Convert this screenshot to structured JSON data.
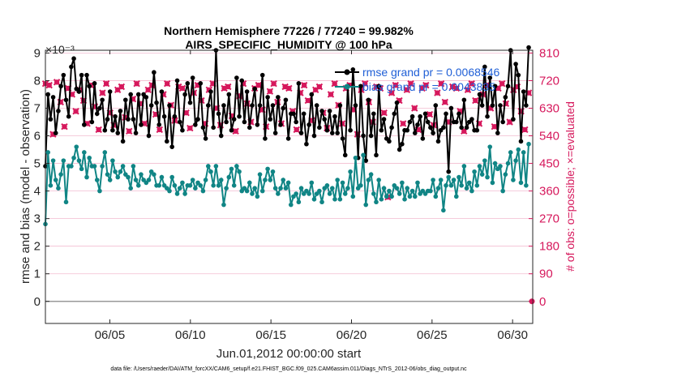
{
  "chart_data": {
    "type": "line",
    "title_line1": "Northern Hemisphere 77226 / 77240 = 99.982%",
    "title_line2": "AIRS_SPECIFIC_HUMIDITY @ 100 hPa",
    "xlabel": "Jun.01,2012 00:00:00 start",
    "ylabel_left": "rmse and bias (model - observation)",
    "ylabel_right": "# of obs: o=possible; ×=evaluated",
    "exponent_label": "×10⁻³",
    "footer": "data file: /Users/raeder/DAI/ATM_forcXX/CAM6_setup/f.e21.FHIST_BGC.f09_025.CAM6assim.011/Diags_NTrS_2012-06/obs_diag_output.nc",
    "x_range": [
      1,
      31.25
    ],
    "y_left_range": [
      -0.0008,
      0.0091
    ],
    "y_right_range": [
      -72,
      819
    ],
    "x_ticks": [
      {
        "value": 5,
        "label": "06/05"
      },
      {
        "value": 10,
        "label": "06/10"
      },
      {
        "value": 15,
        "label": "06/15"
      },
      {
        "value": 20,
        "label": "06/20"
      },
      {
        "value": 25,
        "label": "06/25"
      },
      {
        "value": 30,
        "label": "06/30"
      }
    ],
    "y_left_ticks": [
      {
        "value": 0,
        "label": "0"
      },
      {
        "value": 0.001,
        "label": "1"
      },
      {
        "value": 0.002,
        "label": "2"
      },
      {
        "value": 0.003,
        "label": "3"
      },
      {
        "value": 0.004,
        "label": "4"
      },
      {
        "value": 0.005,
        "label": "5"
      },
      {
        "value": 0.006,
        "label": "6"
      },
      {
        "value": 0.007,
        "label": "7"
      },
      {
        "value": 0.008,
        "label": "8"
      },
      {
        "value": 0.009,
        "label": "9"
      }
    ],
    "y_right_ticks": [
      {
        "value": 0,
        "label": "0"
      },
      {
        "value": 90,
        "label": "90"
      },
      {
        "value": 180,
        "label": "180"
      },
      {
        "value": 270,
        "label": "270"
      },
      {
        "value": 360,
        "label": "360"
      },
      {
        "value": 450,
        "label": "450"
      },
      {
        "value": 540,
        "label": "540"
      },
      {
        "value": 630,
        "label": "630"
      },
      {
        "value": 720,
        "label": "720"
      },
      {
        "value": 810,
        "label": "810"
      }
    ],
    "series": [
      {
        "name": "rmse grand pr = 0.0068546",
        "axis": "left",
        "color": "#000000",
        "values": [
          0.0049,
          0.0075,
          0.0066,
          0.0074,
          0.0061,
          0.0069,
          0.0078,
          0.0082,
          0.0073,
          0.0067,
          0.0085,
          0.0088,
          0.0077,
          0.0076,
          0.0082,
          0.0064,
          0.0082,
          0.0078,
          0.0065,
          0.0079,
          0.0068,
          0.007,
          0.0073,
          0.0062,
          0.0066,
          0.0076,
          0.0062,
          0.0067,
          0.0061,
          0.0069,
          0.0058,
          0.0073,
          0.0066,
          0.0075,
          0.0066,
          0.0061,
          0.0075,
          0.0064,
          0.0075,
          0.0074,
          0.006,
          0.0071,
          0.0083,
          0.0072,
          0.0064,
          0.0076,
          0.0067,
          0.0058,
          0.0071,
          0.0056,
          0.0067,
          0.008,
          0.0065,
          0.0062,
          0.0075,
          0.0079,
          0.0072,
          0.0081,
          0.0064,
          0.0066,
          0.0079,
          0.0063,
          0.0059,
          0.0071,
          0.0076,
          0.0063,
          0.0091,
          0.0068,
          0.006,
          0.0071,
          0.0065,
          0.0075,
          0.0062,
          0.0066,
          0.0081,
          0.0067,
          0.008,
          0.0065,
          0.0076,
          0.0063,
          0.0071,
          0.0077,
          0.0064,
          0.0071,
          0.0082,
          0.0059,
          0.0074,
          0.0066,
          0.0071,
          0.0061,
          0.0074,
          0.0064,
          0.007,
          0.0073,
          0.0059,
          0.0068,
          0.0068,
          0.0065,
          0.0079,
          0.0061,
          0.0068,
          0.0057,
          0.0064,
          0.0075,
          0.006,
          0.0071,
          0.0063,
          0.0069,
          0.0066,
          0.0062,
          0.0069,
          0.0061,
          0.0067,
          0.0061,
          0.0071,
          0.0059,
          0.0053,
          0.0078,
          0.0062,
          0.0084,
          0.0071,
          0.0052,
          0.0078,
          0.006,
          0.0051,
          0.0073,
          0.006,
          0.0068,
          0.0053,
          0.0078,
          0.0062,
          0.0066,
          0.0059,
          0.0058,
          0.0063,
          0.0068,
          0.0072,
          0.0055,
          0.0057,
          0.0062,
          0.0062,
          0.0065,
          0.0067,
          0.0061,
          0.0064,
          0.0067,
          0.0059,
          0.0068,
          0.0065,
          0.0063,
          0.0061,
          0.0071,
          0.0058,
          0.0062,
          0.0063,
          0.0068,
          0.0047,
          0.007,
          0.0065,
          0.0065,
          0.0068,
          0.0063,
          0.0073,
          0.0063,
          0.0065,
          0.0066,
          0.0062,
          0.0062,
          0.0075,
          0.0071,
          0.0085,
          0.0067,
          0.0081,
          0.0071,
          0.0078,
          0.0061,
          0.0071,
          0.0065,
          0.0074,
          0.0078,
          0.0091,
          0.0066,
          0.0086,
          0.0082,
          0.0058,
          0.0076,
          0.0071,
          0.0092
        ]
      },
      {
        "name": "bias grand pr = 0.0043835",
        "axis": "left",
        "color": "#108585",
        "values": [
          0.0028,
          0.0054,
          0.0042,
          0.0051,
          0.0044,
          0.0041,
          0.0046,
          0.0051,
          0.0036,
          0.0049,
          0.0049,
          0.0052,
          0.0056,
          0.0051,
          0.0048,
          0.0054,
          0.0045,
          0.0052,
          0.0049,
          0.0049,
          0.0044,
          0.004,
          0.0049,
          0.0054,
          0.0046,
          0.0044,
          0.0051,
          0.0047,
          0.0045,
          0.0047,
          0.0049,
          0.0046,
          0.0045,
          0.0041,
          0.0049,
          0.0044,
          0.0042,
          0.0046,
          0.0044,
          0.0043,
          0.0044,
          0.0047,
          0.0046,
          0.0042,
          0.0042,
          0.0045,
          0.0042,
          0.0041,
          0.004,
          0.0045,
          0.0042,
          0.0039,
          0.0041,
          0.0043,
          0.0039,
          0.0042,
          0.0042,
          0.0044,
          0.0041,
          0.0043,
          0.0042,
          0.004,
          0.0044,
          0.0049,
          0.0047,
          0.0042,
          0.0049,
          0.0042,
          0.0044,
          0.0035,
          0.0041,
          0.0045,
          0.0048,
          0.0042,
          0.0049,
          0.0047,
          0.004,
          0.0041,
          0.004,
          0.0043,
          0.0039,
          0.0041,
          0.0038,
          0.0046,
          0.004,
          0.0044,
          0.0048,
          0.0044,
          0.0047,
          0.0041,
          0.0039,
          0.0041,
          0.0044,
          0.0041,
          0.0043,
          0.0035,
          0.0038,
          0.0039,
          0.0036,
          0.0041,
          0.0039,
          0.004,
          0.0039,
          0.0043,
          0.0037,
          0.0039,
          0.004,
          0.0036,
          0.0041,
          0.0042,
          0.0039,
          0.0041,
          0.0037,
          0.0044,
          0.0037,
          0.0043,
          0.0039,
          0.0041,
          0.0047,
          0.0038,
          0.0052,
          0.0041,
          0.0042,
          0.0053,
          0.0035,
          0.0044,
          0.0046,
          0.0039,
          0.0036,
          0.0044,
          0.0037,
          0.0041,
          0.0038,
          0.004,
          0.0038,
          0.0042,
          0.0041,
          0.0039,
          0.0043,
          0.0037,
          0.0041,
          0.0038,
          0.004,
          0.0038,
          0.0043,
          0.0039,
          0.004,
          0.0039,
          0.004,
          0.004,
          0.0044,
          0.0038,
          0.0041,
          0.0044,
          0.0033,
          0.0042,
          0.0045,
          0.0042,
          0.0044,
          0.0038,
          0.0045,
          0.0042,
          0.0049,
          0.0041,
          0.0043,
          0.004,
          0.0047,
          0.0042,
          0.0049,
          0.0046,
          0.0051,
          0.0045,
          0.0056,
          0.0043,
          0.005,
          0.0048,
          0.0049,
          0.004,
          0.0046,
          0.005,
          0.0054,
          0.0044,
          0.0051,
          0.0055,
          0.0043,
          0.0054,
          0.0042,
          0.0057
        ]
      },
      {
        "name": "# of obs possible",
        "axis": "right",
        "color": "#d6185c",
        "marker": "circle",
        "values": [
          710,
          705,
          545,
          715,
          650,
          570,
          695,
          675,
          620,
          690,
          655,
          580,
          705,
          635,
          560,
          680,
          710,
          615,
          575,
          690,
          700,
          600,
          555,
          660,
          710,
          645,
          580,
          690,
          705,
          610,
          560,
          675,
          710,
          640,
          590,
          700,
          695,
          615,
          565,
          680,
          705,
          655,
          580,
          690,
          710,
          630,
          575,
          695,
          700,
          605,
          555,
          670,
          710,
          645,
          585,
          695,
          705,
          625,
          570,
          685,
          710,
          650,
          580,
          700,
          695,
          620,
          560,
          680,
          705,
          655,
          590,
          690,
          700,
          615,
          565,
          675,
          710,
          640,
          580,
          695,
          705,
          625,
          545,
          690,
          710,
          650,
          585,
          700,
          695,
          615,
          340,
          680,
          705,
          655,
          580,
          690,
          710,
          630,
          560,
          695,
          705,
          610,
          575,
          680,
          710,
          650,
          585,
          700,
          695,
          620,
          555,
          690,
          710,
          655,
          580,
          675,
          705,
          630,
          570,
          695,
          710,
          645,
          585,
          690,
          700,
          620,
          560,
          680
        ]
      },
      {
        "name": "# of obs evaluated",
        "axis": "right",
        "color": "#d6185c",
        "marker": "x",
        "values": [
          710,
          705,
          545,
          715,
          650,
          570,
          695,
          675,
          620,
          690,
          655,
          580,
          705,
          635,
          560,
          680,
          710,
          615,
          575,
          690,
          700,
          600,
          555,
          660,
          710,
          645,
          580,
          690,
          705,
          610,
          560,
          675,
          710,
          640,
          590,
          700,
          695,
          615,
          565,
          680,
          705,
          655,
          580,
          690,
          710,
          630,
          575,
          695,
          700,
          605,
          555,
          670,
          710,
          645,
          585,
          695,
          705,
          625,
          570,
          685,
          710,
          650,
          580,
          700,
          695,
          620,
          560,
          680,
          705,
          655,
          590,
          690,
          700,
          615,
          565,
          675,
          710,
          640,
          580,
          695,
          705,
          625,
          545,
          690,
          710,
          650,
          585,
          700,
          695,
          615,
          340,
          680,
          705,
          655,
          580,
          690,
          710,
          630,
          560,
          695,
          705,
          610,
          575,
          680,
          710,
          650,
          585,
          700,
          695,
          620,
          555,
          690,
          710,
          655,
          580,
          675,
          705,
          630,
          570,
          695,
          710,
          645,
          585,
          690,
          700,
          620,
          560,
          680
        ]
      }
    ],
    "zero_count_marker": {
      "day": 31.0,
      "value": 0
    }
  }
}
